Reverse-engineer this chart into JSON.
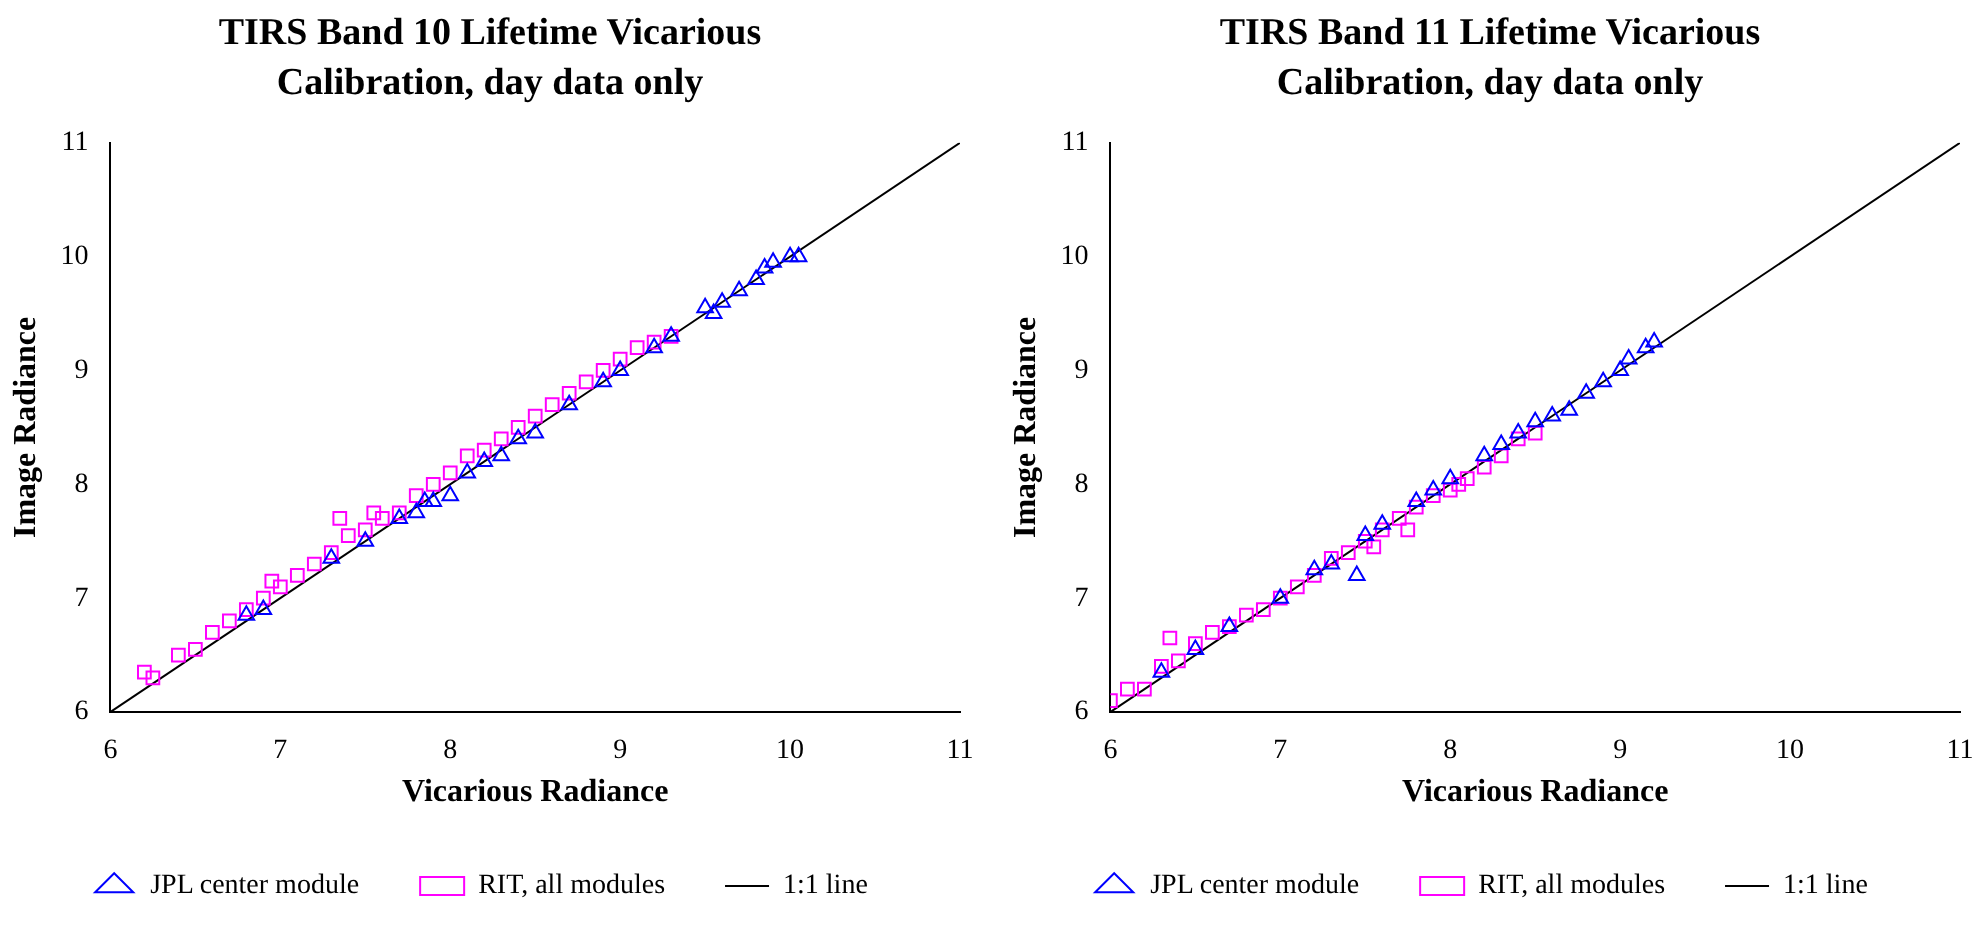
{
  "chart_data": [
    {
      "type": "scatter",
      "title": "TIRS Band 10 Lifetime Vicarious Calibration, day data only",
      "xlabel": "Vicarious Radiance",
      "ylabel": "Image Radiance",
      "xlim": [
        6,
        11
      ],
      "ylim": [
        6,
        11
      ],
      "xticks": [
        6,
        7,
        8,
        9,
        10,
        11
      ],
      "yticks": [
        6,
        7,
        8,
        9,
        10,
        11
      ],
      "grid": false,
      "legend": "bottom",
      "series": [
        {
          "name": "JPL center module",
          "color": "#0000ff",
          "marker": "triangle",
          "x": [
            6.8,
            6.9,
            7.3,
            7.5,
            7.7,
            7.8,
            7.85,
            7.9,
            8.0,
            8.1,
            8.2,
            8.3,
            8.4,
            8.5,
            8.7,
            8.9,
            9.0,
            9.2,
            9.3,
            9.5,
            9.55,
            9.6,
            9.7,
            9.8,
            9.85,
            9.9,
            10.0,
            10.05
          ],
          "values": [
            6.85,
            6.9,
            7.35,
            7.5,
            7.7,
            7.75,
            7.85,
            7.85,
            7.9,
            8.1,
            8.2,
            8.25,
            8.4,
            8.45,
            8.7,
            8.9,
            9.0,
            9.2,
            9.3,
            9.55,
            9.5,
            9.6,
            9.7,
            9.8,
            9.9,
            9.95,
            10.0,
            10.0
          ]
        },
        {
          "name": "RIT, all modules",
          "color": "#ff00ff",
          "marker": "square",
          "x": [
            6.2,
            6.25,
            6.4,
            6.5,
            6.6,
            6.7,
            6.8,
            6.9,
            6.95,
            7.0,
            7.1,
            7.2,
            7.3,
            7.35,
            7.4,
            7.5,
            7.55,
            7.6,
            7.7,
            7.8,
            7.9,
            8.0,
            8.1,
            8.2,
            8.3,
            8.4,
            8.5,
            8.6,
            8.7,
            8.8,
            8.9,
            9.0,
            9.1,
            9.2,
            9.3
          ],
          "values": [
            6.35,
            6.3,
            6.5,
            6.55,
            6.7,
            6.8,
            6.9,
            7.0,
            7.15,
            7.1,
            7.2,
            7.3,
            7.4,
            7.7,
            7.55,
            7.6,
            7.75,
            7.7,
            7.75,
            7.9,
            8.0,
            8.1,
            8.25,
            8.3,
            8.4,
            8.5,
            8.6,
            8.7,
            8.8,
            8.9,
            9.0,
            9.1,
            9.2,
            9.25,
            9.3
          ]
        },
        {
          "name": "1:1 line",
          "type": "line",
          "color": "#000000",
          "marker": "none",
          "x": [
            6,
            11
          ],
          "values": [
            6,
            11
          ]
        }
      ]
    },
    {
      "type": "scatter",
      "title": "TIRS Band 11 Lifetime Vicarious Calibration, day data only",
      "xlabel": "Vicarious Radiance",
      "ylabel": "Image Radiance",
      "xlim": [
        6,
        11
      ],
      "ylim": [
        6,
        11
      ],
      "xticks": [
        6,
        7,
        8,
        9,
        10,
        11
      ],
      "yticks": [
        6,
        7,
        8,
        9,
        10,
        11
      ],
      "grid": false,
      "legend": "bottom",
      "series": [
        {
          "name": "JPL center module",
          "color": "#0000ff",
          "marker": "triangle",
          "x": [
            6.3,
            6.5,
            6.7,
            7.0,
            7.2,
            7.3,
            7.45,
            7.5,
            7.6,
            7.8,
            7.9,
            8.0,
            8.2,
            8.3,
            8.4,
            8.5,
            8.6,
            8.7,
            8.8,
            8.9,
            9.0,
            9.05,
            9.15,
            9.2
          ],
          "values": [
            6.35,
            6.55,
            6.75,
            7.0,
            7.25,
            7.3,
            7.2,
            7.55,
            7.65,
            7.85,
            7.95,
            8.05,
            8.25,
            8.35,
            8.45,
            8.55,
            8.6,
            8.65,
            8.8,
            8.9,
            9.0,
            9.1,
            9.2,
            9.25
          ]
        },
        {
          "name": "RIT, all modules",
          "color": "#ff00ff",
          "marker": "square",
          "x": [
            6.0,
            6.1,
            6.2,
            6.3,
            6.35,
            6.4,
            6.5,
            6.6,
            6.7,
            6.8,
            6.9,
            7.0,
            7.1,
            7.2,
            7.3,
            7.4,
            7.5,
            7.55,
            7.6,
            7.7,
            7.75,
            7.8,
            7.9,
            8.0,
            8.05,
            8.1,
            8.2,
            8.3,
            8.4,
            8.5
          ],
          "values": [
            6.1,
            6.2,
            6.2,
            6.4,
            6.65,
            6.45,
            6.6,
            6.7,
            6.75,
            6.85,
            6.9,
            7.0,
            7.1,
            7.2,
            7.35,
            7.4,
            7.5,
            7.45,
            7.6,
            7.7,
            7.6,
            7.8,
            7.9,
            7.95,
            8.0,
            8.05,
            8.15,
            8.25,
            8.4,
            8.45
          ]
        },
        {
          "name": "1:1 line",
          "type": "line",
          "color": "#000000",
          "marker": "none",
          "x": [
            6,
            11
          ],
          "values": [
            6,
            11
          ]
        }
      ]
    }
  ]
}
